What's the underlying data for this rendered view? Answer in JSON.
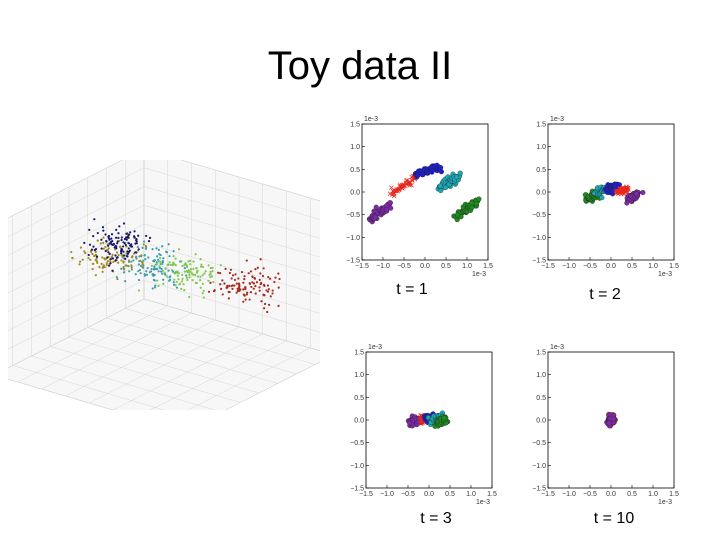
{
  "slide": {
    "title": "Toy data II"
  },
  "colors": {
    "purple": "#7f2aa8",
    "red": "#e8281c",
    "blue": "#1f1fd0",
    "cyan": "#1aa9b5",
    "green": "#1f8a1f",
    "navy": "#17176e",
    "olive": "#a08a20",
    "lightgreen": "#7ec850",
    "teal": "#3a9ab8",
    "darkred": "#a8281c"
  },
  "chart_data": [
    {
      "type": "scatter",
      "id": "scatter3d",
      "title": "",
      "clusters": [
        {
          "color": "teal",
          "center": [
            0.2,
            0.4,
            0.6
          ]
        },
        {
          "color": "olive",
          "center": [
            -0.4,
            0.2,
            0.4
          ]
        },
        {
          "color": "navy",
          "center": [
            -0.7,
            -0.3,
            0.2
          ]
        },
        {
          "color": "lightgreen",
          "center": [
            -0.2,
            -0.5,
            -0.1
          ]
        },
        {
          "color": "darkred",
          "center": [
            0.5,
            -0.5,
            0.0
          ]
        }
      ]
    },
    {
      "type": "scatter",
      "id": "t1",
      "caption": "t = 1",
      "multiplier": "1e-3",
      "xlim": [
        -1.5,
        1.5
      ],
      "ylim": [
        -1.5,
        1.5
      ],
      "xticks": [
        "−1.5",
        "−1.0",
        "−0.5",
        "0.0",
        "0.5",
        "1.0",
        "1.5"
      ],
      "yticks": [
        "1.5",
        "1.0",
        "0.5",
        "0.0",
        "−0.5",
        "−1.0",
        "−1.5"
      ],
      "series": [
        {
          "color": "purple",
          "marker": "circle",
          "x": [
            -1.3,
            -0.85
          ],
          "y": [
            -0.6,
            -0.3
          ]
        },
        {
          "color": "red",
          "marker": "x",
          "x": [
            -0.8,
            -0.2
          ],
          "y": [
            -0.05,
            0.35
          ]
        },
        {
          "color": "blue",
          "marker": "circle",
          "x": [
            -0.2,
            0.35
          ],
          "y": [
            0.4,
            0.55
          ]
        },
        {
          "color": "cyan",
          "marker": "circle",
          "x": [
            0.35,
            0.8
          ],
          "y": [
            0.1,
            0.35
          ]
        },
        {
          "color": "green",
          "marker": "circle",
          "x": [
            0.75,
            1.25
          ],
          "y": [
            -0.55,
            -0.2
          ]
        }
      ]
    },
    {
      "type": "scatter",
      "id": "t2",
      "caption": "t = 2",
      "multiplier": "1e-3",
      "xlim": [
        -1.5,
        1.5
      ],
      "ylim": [
        -1.5,
        1.5
      ],
      "xticks": [
        "−1.5",
        "−1.0",
        "−0.5",
        "0.0",
        "0.5",
        "1.0",
        "1.5"
      ],
      "yticks": [
        "1.5",
        "1.0",
        "0.5",
        "0.0",
        "−0.5",
        "−1.0",
        "−1.5"
      ],
      "series": [
        {
          "color": "green",
          "marker": "circle",
          "x": [
            -0.6,
            -0.3
          ],
          "y": [
            -0.15,
            -0.05
          ]
        },
        {
          "color": "cyan",
          "marker": "circle",
          "x": [
            -0.35,
            -0.05
          ],
          "y": [
            0.0,
            0.08
          ]
        },
        {
          "color": "blue",
          "marker": "circle",
          "x": [
            -0.05,
            0.15
          ],
          "y": [
            0.06,
            0.12
          ]
        },
        {
          "color": "red",
          "marker": "x",
          "x": [
            0.15,
            0.4
          ],
          "y": [
            0.0,
            0.08
          ]
        },
        {
          "color": "purple",
          "marker": "circle",
          "x": [
            0.4,
            0.65
          ],
          "y": [
            -0.15,
            -0.05
          ]
        }
      ]
    },
    {
      "type": "scatter",
      "id": "t3",
      "caption": "t = 3",
      "multiplier": "1e-3",
      "xlim": [
        -1.5,
        1.5
      ],
      "ylim": [
        -1.5,
        1.5
      ],
      "xticks": [
        "−1.5",
        "−1.0",
        "−0.5",
        "0.0",
        "0.5",
        "1.0",
        "1.5"
      ],
      "yticks": [
        "1.5",
        "1.0",
        "0.5",
        "0.0",
        "−0.5",
        "−1.0",
        "−1.5"
      ],
      "series": [
        {
          "color": "purple",
          "marker": "circle",
          "x": [
            -0.45,
            -0.2
          ],
          "y": [
            -0.05,
            0.02
          ]
        },
        {
          "color": "red",
          "marker": "x",
          "x": [
            -0.2,
            0.0
          ],
          "y": [
            0.0,
            0.05
          ]
        },
        {
          "color": "blue",
          "marker": "circle",
          "x": [
            -0.05,
            0.1
          ],
          "y": [
            0.02,
            0.06
          ]
        },
        {
          "color": "cyan",
          "marker": "circle",
          "x": [
            0.05,
            0.3
          ],
          "y": [
            0.0,
            0.05
          ]
        },
        {
          "color": "green",
          "marker": "circle",
          "x": [
            0.2,
            0.4
          ],
          "y": [
            -0.06,
            0.0
          ]
        }
      ]
    },
    {
      "type": "scatter",
      "id": "t10",
      "caption": "t = 10",
      "multiplier": "1e-3",
      "xlim": [
        -1.5,
        1.5
      ],
      "ylim": [
        -1.5,
        1.5
      ],
      "xticks": [
        "−1.5",
        "−1.0",
        "−0.5",
        "0.0",
        "0.5",
        "1.0",
        "1.5"
      ],
      "yticks": [
        "1.5",
        "1.0",
        "0.5",
        "0.0",
        "−0.5",
        "−1.0",
        "−1.5"
      ],
      "series": [
        {
          "color": "red",
          "marker": "circle",
          "x": [
            -0.05,
            0.05
          ],
          "y": [
            -0.05,
            0.05
          ]
        },
        {
          "color": "purple",
          "marker": "circle",
          "x": [
            -0.03,
            0.03
          ],
          "y": [
            -0.03,
            0.03
          ]
        }
      ]
    }
  ]
}
